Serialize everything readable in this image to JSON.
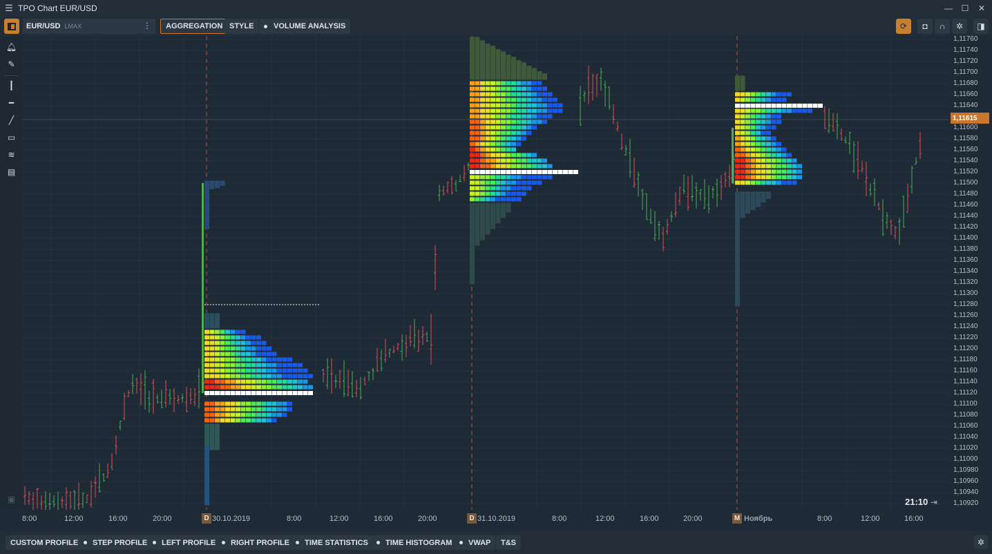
{
  "window": {
    "title": "TPO Chart EUR/USD"
  },
  "toolbar": {
    "symbol": "EUR/USD",
    "exchange": "LMAX",
    "buttons": [
      "AGGREGATION",
      "STYLE",
      "VOLUME ANALYSIS"
    ]
  },
  "left_tools": [
    "bell-icon",
    "pencil-icon",
    "vertical-line-icon",
    "horizontal-line-icon",
    "trend-line-icon",
    "rectangle-icon",
    "fibonacci-icon",
    "template-icon"
  ],
  "right_tools": [
    "replay-icon",
    "mouse-icon",
    "magnet-icon",
    "gear-icon",
    "panel-icon"
  ],
  "price_axis": {
    "labels": [
      "1,11760",
      "1,11740",
      "1,11720",
      "1,11700",
      "1,11680",
      "1,11660",
      "1,11640",
      "1,11600",
      "1,11580",
      "1,11560",
      "1,11540",
      "1,11520",
      "1,11500",
      "1,11480",
      "1,11460",
      "1,11440",
      "1,11420",
      "1,11400",
      "1,11380",
      "1,11360",
      "1,11340",
      "1,11320",
      "1,11300",
      "1,11280",
      "1,11260",
      "1,11240",
      "1,11220",
      "1,11200",
      "1,11180",
      "1,11160",
      "1,11140",
      "1,11120",
      "1,11100",
      "1,11080",
      "1,11060",
      "1,11040",
      "1,11020",
      "1,11000",
      "1,10980",
      "1,10960",
      "1,10940",
      "1,10920"
    ],
    "current_price": "1,11615"
  },
  "time_axis": {
    "labels": [
      "8:00",
      "12:00",
      "16:00",
      "20:00",
      "30.10.2019",
      "8:00",
      "12:00",
      "16:00",
      "20:00",
      "31.10.2019",
      "8:00",
      "12:00",
      "16:00",
      "20:00",
      "Ноябрь",
      "8:00",
      "12:00",
      "16:00"
    ],
    "markers": [
      "D",
      "D",
      "M"
    ]
  },
  "clock": "21:10",
  "bottom_buttons": [
    "CUSTOM PROFILE",
    "STEP PROFILE",
    "LEFT PROFILE",
    "RIGHT PROFILE",
    "TIME STATISTICS",
    "TIME HISTOGRAM",
    "VWAP",
    "T&S"
  ],
  "colors": {
    "accent": "#c8762e",
    "background": "#1e2a36",
    "up": "#4caf50",
    "down": "#e05050"
  }
}
